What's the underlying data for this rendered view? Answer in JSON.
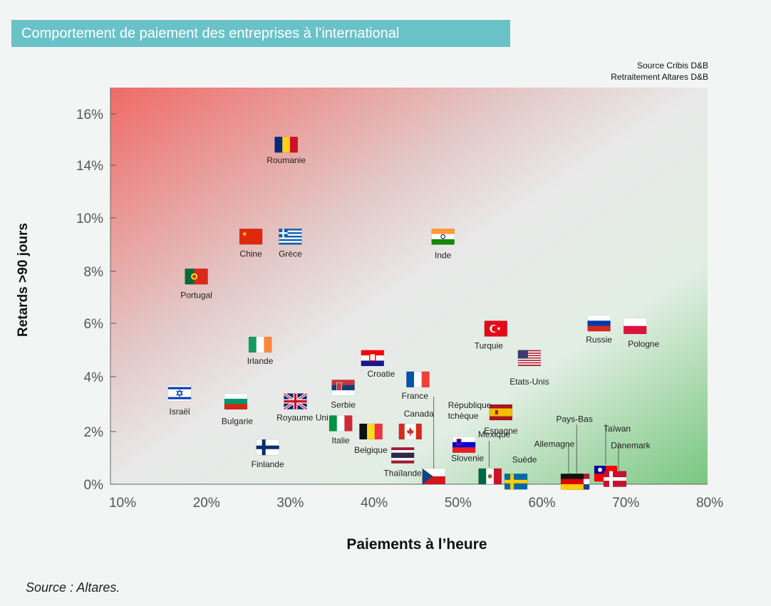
{
  "header": {
    "title": "Comportement de paiement des entreprises à l’international",
    "source_line1": "Source Cribis D&B",
    "source_line2": "Retraitement Altares D&B"
  },
  "footer": {
    "source": "Source : Altares."
  },
  "chart_data": {
    "type": "scatter",
    "title": "Comportement de paiement des entreprises à l’international",
    "xlabel": "Paiements à l’heure",
    "ylabel": "Retards >90 jours",
    "xlim": [
      10,
      80
    ],
    "ylim": [
      0,
      17
    ],
    "x_ticks": [
      10,
      20,
      30,
      40,
      50,
      60,
      70,
      80
    ],
    "x_tick_labels": [
      "10%",
      "20%",
      "30%",
      "40%",
      "50%",
      "60%",
      "70%",
      "80%"
    ],
    "y_ticks": [
      0,
      2,
      4,
      6,
      8,
      10,
      14,
      16
    ],
    "y_tick_labels": [
      "0%",
      "2%",
      "4%",
      "6%",
      "8%",
      "10%",
      "14%",
      "16%"
    ],
    "grid": false,
    "background": "gradient: red top-left, grey center, green bottom-right",
    "points": [
      {
        "label": "Roumanie",
        "x": 29.5,
        "y": 14.8,
        "flag": "romania"
      },
      {
        "label": "Chine",
        "x": 25.3,
        "y": 9.3,
        "flag": "china"
      },
      {
        "label": "Grèce",
        "x": 30,
        "y": 9.3,
        "flag": "greece"
      },
      {
        "label": "Inde",
        "x": 48.2,
        "y": 9.3,
        "flag": "india"
      },
      {
        "label": "Portugal",
        "x": 18.8,
        "y": 7.8,
        "flag": "portugal"
      },
      {
        "label": "Irlande",
        "x": 26.4,
        "y": 5.2,
        "flag": "ireland"
      },
      {
        "label": "Croatie",
        "x": 39.8,
        "y": 4.7,
        "flag": "croatia"
      },
      {
        "label": "Turquie",
        "x": 54.5,
        "y": 5.8,
        "flag": "turkey"
      },
      {
        "label": "Russie",
        "x": 66.8,
        "y": 6.0,
        "flag": "russia"
      },
      {
        "label": "Pologne",
        "x": 71.1,
        "y": 5.9,
        "flag": "poland"
      },
      {
        "label": "Etats-Unis",
        "x": 58.5,
        "y": 4.7,
        "flag": "usa"
      },
      {
        "label": "Israël",
        "x": 16.8,
        "y": 3.4,
        "flag": "israel"
      },
      {
        "label": "Bulgarie",
        "x": 23.5,
        "y": 3.1,
        "flag": "bulgaria"
      },
      {
        "label": "Royaume Uni",
        "x": 30.6,
        "y": 3.1,
        "flag": "uk"
      },
      {
        "label": "Serbie",
        "x": 36.3,
        "y": 3.6,
        "flag": "serbia"
      },
      {
        "label": "France",
        "x": 45.2,
        "y": 3.9,
        "flag": "france"
      },
      {
        "label": "Canada",
        "x": 44.3,
        "y": 2.0,
        "flag": "canada"
      },
      {
        "label": "République tchèque",
        "x": 47.1,
        "y": 0.3,
        "flag": "czech"
      },
      {
        "label": "Espagne",
        "x": 55.1,
        "y": 2.7,
        "flag": "spain"
      },
      {
        "label": "Italie",
        "x": 36.0,
        "y": 2.3,
        "flag": "italy"
      },
      {
        "label": "Belgique",
        "x": 39.6,
        "y": 2.0,
        "flag": "belgium"
      },
      {
        "label": "Slovenie",
        "x": 50.7,
        "y": 1.5,
        "flag": "slovenia"
      },
      {
        "label": "Mexique",
        "x": 53.8,
        "y": 0.3,
        "flag": "mexico"
      },
      {
        "label": "Finlande",
        "x": 27.3,
        "y": 1.4,
        "flag": "finland"
      },
      {
        "label": "Thaïlande",
        "x": 43.4,
        "y": 1.1,
        "flag": "thailand"
      },
      {
        "label": "Suède",
        "x": 56.9,
        "y": 0.1,
        "flag": "sweden"
      },
      {
        "label": "Pays-Bas",
        "x": 64.3,
        "y": 0.1,
        "flag": "netherlands"
      },
      {
        "label": "Allemagne",
        "x": 63.6,
        "y": 0.1,
        "flag": "germany"
      },
      {
        "label": "Taïwan",
        "x": 67.6,
        "y": 0.4,
        "flag": "taiwan"
      },
      {
        "label": "Danemark",
        "x": 68.7,
        "y": 0.2,
        "flag": "denmark"
      }
    ]
  }
}
